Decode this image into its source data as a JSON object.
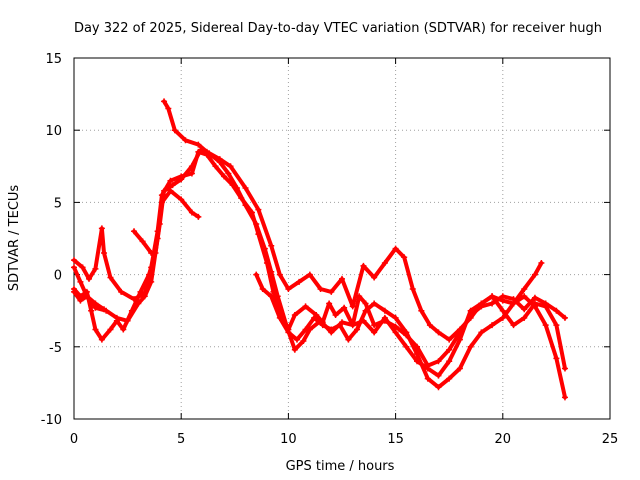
{
  "chart_data": {
    "type": "line",
    "title": "Day 322 of 2025, Sidereal Day-to-day VTEC variation (SDTVAR) for receiver hugh",
    "xlabel": "GPS time / hours",
    "ylabel": "SDTVAR / TECUs",
    "xlim": [
      0,
      25
    ],
    "ylim": [
      -10,
      15
    ],
    "xticks": [
      0,
      5,
      10,
      15,
      20,
      25
    ],
    "yticks": [
      -10,
      -5,
      0,
      5,
      10,
      15
    ],
    "xtick_labels": [
      "0",
      "5",
      "10",
      "15",
      "20",
      "25"
    ],
    "ytick_labels": [
      "-10",
      "-5",
      "0",
      "5",
      "10",
      "15"
    ],
    "grid": true,
    "marker": "plus",
    "series_color": "#ff0000",
    "series": [
      {
        "name": "s1",
        "points": [
          [
            0,
            1.0
          ],
          [
            0.4,
            0.5
          ],
          [
            0.7,
            -0.3
          ],
          [
            1.0,
            0.4
          ],
          [
            1.3,
            3.2
          ],
          [
            1.4,
            1.5
          ],
          [
            1.7,
            -0.2
          ],
          [
            2.2,
            -1.2
          ],
          [
            2.8,
            -1.7
          ],
          [
            3.3,
            -1.3
          ],
          [
            3.6,
            0.5
          ],
          [
            3.9,
            3.0
          ],
          [
            4.1,
            5.5
          ],
          [
            4.5,
            6.5
          ],
          [
            5.0,
            6.8
          ],
          [
            5.5,
            7.0
          ],
          [
            5.8,
            8.5
          ],
          [
            6.2,
            8.3
          ],
          [
            6.6,
            7.5
          ],
          [
            7.0,
            6.8
          ],
          [
            7.4,
            6.2
          ],
          [
            7.8,
            5.3
          ],
          [
            8.3,
            4.3
          ],
          [
            8.6,
            2.8
          ],
          [
            9.0,
            0.8
          ],
          [
            9.3,
            -1.2
          ],
          [
            9.7,
            -2.8
          ],
          [
            10.0,
            -3.8
          ],
          [
            10.3,
            -2.8
          ],
          [
            10.8,
            -2.2
          ],
          [
            11.3,
            -2.8
          ],
          [
            11.6,
            -3.3
          ],
          [
            11.9,
            -2.0
          ],
          [
            12.2,
            -2.8
          ],
          [
            12.6,
            -2.3
          ],
          [
            13.0,
            -3.5
          ],
          [
            13.5,
            -3.2
          ],
          [
            14.0,
            -4.0
          ],
          [
            14.5,
            -3.0
          ],
          [
            15.0,
            -4.0
          ],
          [
            15.5,
            -5.0
          ],
          [
            16.0,
            -6.0
          ],
          [
            16.5,
            -6.5
          ],
          [
            17.0,
            -7.0
          ],
          [
            17.5,
            -6.0
          ],
          [
            18.0,
            -4.5
          ],
          [
            18.5,
            -2.5
          ],
          [
            19.0,
            -2.0
          ],
          [
            19.5,
            -1.5
          ],
          [
            20.0,
            -2.5
          ],
          [
            20.5,
            -3.5
          ],
          [
            21.0,
            -3.0
          ],
          [
            21.5,
            -2.0
          ],
          [
            22.0,
            -2.2
          ],
          [
            22.5,
            -3.5
          ],
          [
            22.9,
            -6.5
          ]
        ]
      },
      {
        "name": "s2",
        "points": [
          [
            0,
            -1.0
          ],
          [
            0.3,
            -1.5
          ],
          [
            0.6,
            -1.2
          ],
          [
            0.8,
            -2.5
          ],
          [
            1.0,
            -3.8
          ],
          [
            1.3,
            -4.5
          ],
          [
            1.7,
            -3.8
          ],
          [
            2.0,
            -3.2
          ],
          [
            2.3,
            -3.8
          ],
          [
            2.7,
            -2.5
          ],
          [
            3.1,
            -1.2
          ],
          [
            3.5,
            0.0
          ],
          [
            3.8,
            1.5
          ],
          [
            4.0,
            3.5
          ],
          [
            4.2,
            5.8
          ],
          [
            4.6,
            6.2
          ],
          [
            5.0,
            6.6
          ],
          [
            5.5,
            7.5
          ],
          [
            5.9,
            8.6
          ],
          [
            6.3,
            8.4
          ],
          [
            6.8,
            7.8
          ],
          [
            7.2,
            7.0
          ],
          [
            7.6,
            6.0
          ],
          [
            8.0,
            4.8
          ],
          [
            8.5,
            3.5
          ],
          [
            8.9,
            1.8
          ],
          [
            9.2,
            0.2
          ],
          [
            9.5,
            -1.5
          ],
          [
            9.9,
            -3.5
          ],
          [
            10.3,
            -5.2
          ],
          [
            10.7,
            -4.6
          ],
          [
            11.0,
            -3.8
          ],
          [
            11.5,
            -3.2
          ],
          [
            12.0,
            -4.0
          ],
          [
            12.5,
            -3.3
          ],
          [
            13.0,
            -3.5
          ],
          [
            13.3,
            -1.5
          ],
          [
            13.6,
            -2.0
          ],
          [
            14.0,
            -3.5
          ],
          [
            14.5,
            -3.2
          ],
          [
            15.0,
            -3.6
          ],
          [
            15.5,
            -4.2
          ],
          [
            16.0,
            -5.0
          ],
          [
            16.5,
            -6.3
          ],
          [
            17.0,
            -6.0
          ],
          [
            17.5,
            -5.2
          ],
          [
            18.0,
            -4.0
          ],
          [
            18.5,
            -2.8
          ],
          [
            19.0,
            -2.2
          ],
          [
            19.5,
            -2.0
          ],
          [
            20.0,
            -1.5
          ],
          [
            20.5,
            -1.7
          ],
          [
            21.0,
            -2.4
          ],
          [
            21.5,
            -1.6
          ],
          [
            22.0,
            -2.0
          ],
          [
            22.5,
            -2.5
          ],
          [
            22.9,
            -3.0
          ]
        ]
      },
      {
        "name": "s3",
        "points": [
          [
            0,
            0.5
          ],
          [
            0.3,
            -0.5
          ],
          [
            0.6,
            -1.5
          ],
          [
            1.0,
            -2.3
          ],
          [
            1.5,
            -2.5
          ],
          [
            2.0,
            -3.0
          ],
          [
            2.5,
            -3.2
          ],
          [
            3.0,
            -2.0
          ],
          [
            3.3,
            -1.5
          ],
          [
            3.6,
            -0.5
          ],
          [
            3.9,
            2.5
          ],
          [
            4.1,
            5.0
          ],
          [
            4.5,
            5.8
          ],
          [
            5.0,
            5.2
          ],
          [
            5.5,
            4.3
          ],
          [
            5.8,
            4.0
          ]
        ]
      },
      {
        "name": "s4",
        "points": [
          [
            4.2,
            12.0
          ],
          [
            4.4,
            11.5
          ],
          [
            4.7,
            10.0
          ],
          [
            5.2,
            9.3
          ],
          [
            5.8,
            9.0
          ],
          [
            6.2,
            8.5
          ],
          [
            6.8,
            8.0
          ],
          [
            7.3,
            7.5
          ],
          [
            8.0,
            6.0
          ],
          [
            8.6,
            4.5
          ],
          [
            9.2,
            2.0
          ],
          [
            9.6,
            0.0
          ],
          [
            10.0,
            -1.0
          ],
          [
            10.5,
            -0.5
          ],
          [
            11.0,
            0.0
          ],
          [
            11.5,
            -1.0
          ],
          [
            12.0,
            -1.2
          ],
          [
            12.5,
            -0.3
          ],
          [
            13.0,
            -2.2
          ],
          [
            13.5,
            0.6
          ],
          [
            14.0,
            -0.2
          ],
          [
            14.5,
            0.8
          ],
          [
            15.0,
            1.8
          ],
          [
            15.4,
            1.2
          ],
          [
            15.8,
            -1.0
          ],
          [
            16.2,
            -2.5
          ],
          [
            16.6,
            -3.5
          ],
          [
            17.0,
            -4.0
          ],
          [
            17.5,
            -4.5
          ],
          [
            18.0,
            -3.8
          ],
          [
            18.5,
            -3.0
          ],
          [
            19.0,
            -2.0
          ],
          [
            19.5,
            -1.5
          ],
          [
            20.0,
            -1.8
          ],
          [
            20.5,
            -2.0
          ],
          [
            21.0,
            -1.0
          ],
          [
            21.5,
            0.0
          ],
          [
            21.8,
            0.8
          ]
        ]
      },
      {
        "name": "s5",
        "points": [
          [
            2.8,
            3.0
          ],
          [
            3.2,
            2.3
          ],
          [
            3.6,
            1.5
          ]
        ]
      },
      {
        "name": "s6",
        "points": [
          [
            0,
            -1.2
          ],
          [
            0.3,
            -1.8
          ],
          [
            0.6,
            -1.5
          ],
          [
            1.0,
            -2.0
          ],
          [
            1.4,
            -2.4
          ]
        ]
      },
      {
        "name": "s7",
        "points": [
          [
            8.5,
            0.0
          ],
          [
            8.8,
            -1.0
          ],
          [
            9.2,
            -1.5
          ],
          [
            9.6,
            -3.0
          ],
          [
            10.0,
            -4.0
          ],
          [
            10.4,
            -4.5
          ],
          [
            10.8,
            -3.8
          ],
          [
            11.2,
            -3.0
          ],
          [
            11.6,
            -3.5
          ],
          [
            12.0,
            -3.8
          ],
          [
            12.4,
            -3.5
          ],
          [
            12.8,
            -4.5
          ],
          [
            13.2,
            -3.8
          ],
          [
            13.6,
            -2.5
          ],
          [
            14.0,
            -2.0
          ],
          [
            14.5,
            -2.5
          ],
          [
            15.0,
            -3.0
          ],
          [
            15.5,
            -4.0
          ],
          [
            16.0,
            -5.5
          ],
          [
            16.5,
            -7.2
          ],
          [
            17.0,
            -7.8
          ],
          [
            17.5,
            -7.2
          ],
          [
            18.0,
            -6.5
          ],
          [
            18.5,
            -5.0
          ],
          [
            19.0,
            -4.0
          ],
          [
            19.5,
            -3.5
          ],
          [
            20.0,
            -3.0
          ],
          [
            20.5,
            -2.0
          ],
          [
            21.0,
            -1.5
          ],
          [
            21.5,
            -2.2
          ],
          [
            22.0,
            -3.5
          ],
          [
            22.5,
            -5.8
          ],
          [
            22.9,
            -8.5
          ]
        ]
      }
    ]
  }
}
